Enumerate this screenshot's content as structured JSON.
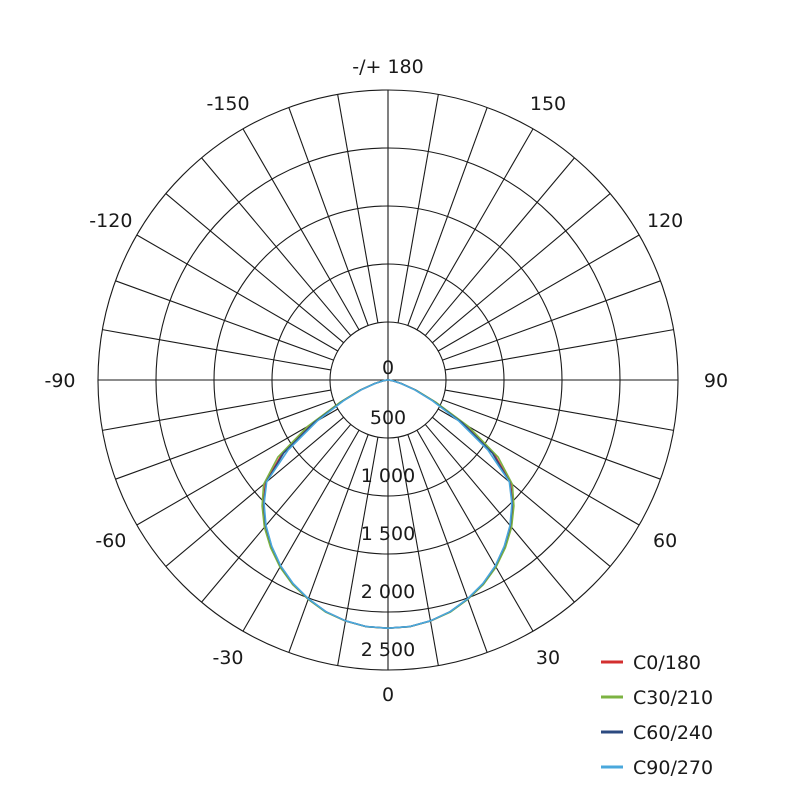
{
  "chart_data": {
    "type": "polar",
    "angle_labels": [
      {
        "angle": 180,
        "text": "-/+ 180"
      },
      {
        "angle": -150,
        "text": "-150"
      },
      {
        "angle": 150,
        "text": "150"
      },
      {
        "angle": -120,
        "text": "-120"
      },
      {
        "angle": 120,
        "text": "120"
      },
      {
        "angle": -90,
        "text": "-90"
      },
      {
        "angle": 90,
        "text": "90"
      },
      {
        "angle": -60,
        "text": "-60"
      },
      {
        "angle": 60,
        "text": "60"
      },
      {
        "angle": -30,
        "text": "-30"
      },
      {
        "angle": 30,
        "text": "30"
      },
      {
        "angle": 0,
        "text": "0"
      }
    ],
    "radial_ticks": [
      {
        "value": 0,
        "text": "0"
      },
      {
        "value": 500,
        "text": "500"
      },
      {
        "value": 1000,
        "text": "1 000"
      },
      {
        "value": 1500,
        "text": "1 500"
      },
      {
        "value": 2000,
        "text": "2 000"
      },
      {
        "value": 2500,
        "text": "2 500"
      }
    ],
    "rlim": [
      0,
      2500
    ],
    "angle_step_grid": 10,
    "legend_position": "bottom-right",
    "angles": [
      0,
      5,
      10,
      15,
      20,
      25,
      30,
      35,
      40,
      45,
      50,
      55,
      60,
      65,
      70,
      75,
      80,
      85,
      90
    ],
    "series": [
      {
        "name": "C0/180",
        "color": "#d32f2f",
        "values": [
          2140,
          2135,
          2110,
          2070,
          2010,
          1940,
          1855,
          1755,
          1645,
          1520,
          1380,
          1120,
          760,
          440,
          250,
          120,
          50,
          15,
          0
        ]
      },
      {
        "name": "C30/210",
        "color": "#7cb342",
        "values": [
          2140,
          2135,
          2110,
          2072,
          2012,
          1945,
          1862,
          1765,
          1658,
          1535,
          1400,
          1160,
          800,
          460,
          260,
          125,
          52,
          15,
          0
        ]
      },
      {
        "name": "C60/240",
        "color": "#2c4a80",
        "values": [
          2140,
          2134,
          2108,
          2068,
          2008,
          1938,
          1852,
          1750,
          1640,
          1515,
          1370,
          1100,
          740,
          430,
          245,
          118,
          48,
          14,
          0
        ]
      },
      {
        "name": "C90/270",
        "color": "#4aa8dc",
        "values": [
          2140,
          2134,
          2108,
          2068,
          2006,
          1936,
          1850,
          1748,
          1636,
          1510,
          1365,
          1050,
          700,
          420,
          240,
          115,
          46,
          14,
          0
        ]
      }
    ]
  }
}
